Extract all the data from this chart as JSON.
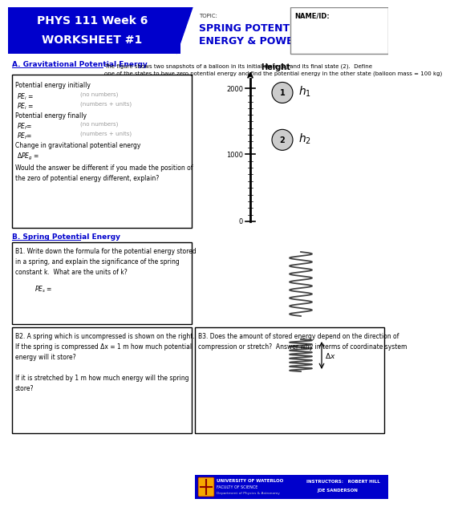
{
  "title_left_line1": "PHYS 111 Week 6",
  "title_left_line2": "WORKSHEET #1",
  "topic_label": "TOPIC:",
  "topic_line1": "SPRING POTENTIAL",
  "topic_line2": "ENERGY & POWER",
  "name_label": "NAME/ID:",
  "header_bg": "#0000CC",
  "header_text_color": "#FFFFFF",
  "topic_text_color": "#0000CC",
  "section_a_label": "A. Gravitational Potential Energy",
  "section_a_text": "The figure shows two snapshots of a balloon in its initial state (1) and its final state (2).  Define\none of the states to have zero potential energy and find the potential energy in the other state (balloon mass = 100 kg)",
  "section_b_label": "B. Spring Potential Energy",
  "footer_bg": "#0000CC",
  "link_color": "#0000CC",
  "bg_color": "#FFFFFF",
  "gray_text": "#999999",
  "black": "#000000",
  "white": "#FFFFFF",
  "dark_gray": "#333333"
}
